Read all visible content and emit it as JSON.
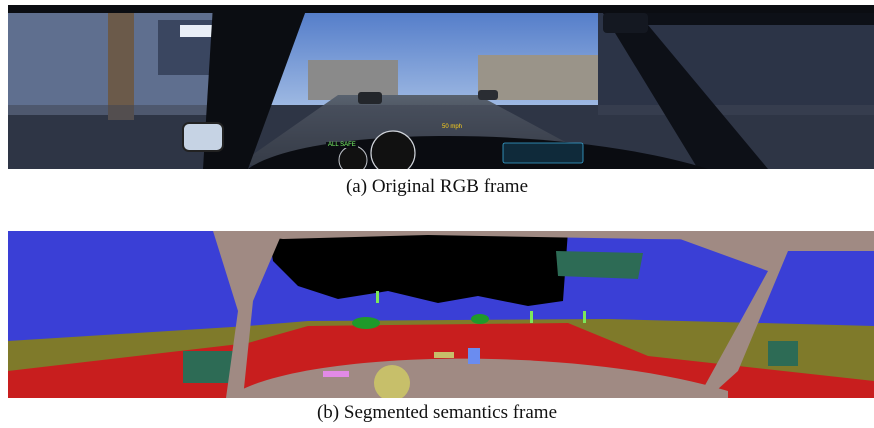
{
  "figure": {
    "caption_a": "(a) Original RGB frame",
    "caption_b": "(b) Segmented semantics frame"
  },
  "hud": {
    "speed_badge": "ALL SAFE",
    "nav_text": "50 mph"
  },
  "palette": {
    "sky": "#3a3fd6",
    "building_void": "#000000",
    "vehicle_body": "#a08a83",
    "terrain": "#7f7a2a",
    "road": "#c81e1e",
    "car": "#2d6b55",
    "tree": "#1f9a2a",
    "pole": "#7de85a",
    "sign_pink": "#e28ae6",
    "sign_yellow": "#c7bf6a",
    "sign_blue": "#6a8cf0"
  }
}
